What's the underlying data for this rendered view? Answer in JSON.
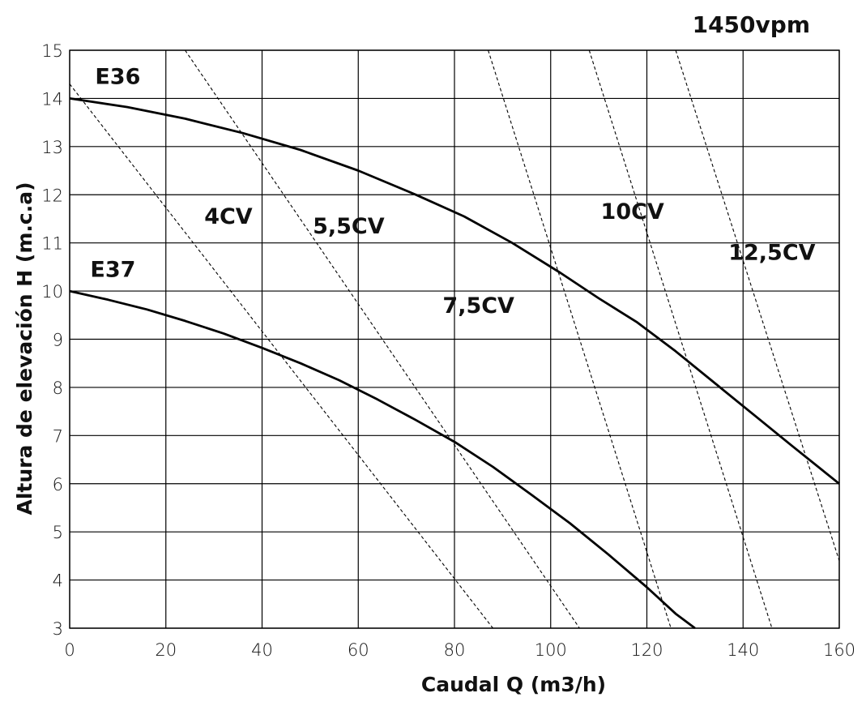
{
  "chart_data": {
    "type": "line",
    "title": "",
    "subtitle": "1450vpm",
    "xlabel": "Caudal Q (m3/h)",
    "ylabel": "Altura de elevación H (m.c.a)",
    "xlim": [
      0,
      160
    ],
    "ylim": [
      3,
      15
    ],
    "x_ticks": [
      "0",
      "20",
      "40",
      "60",
      "80",
      "100",
      "120",
      "140",
      "160"
    ],
    "y_ticks": [
      "3",
      "4",
      "5",
      "6",
      "7",
      "8",
      "9",
      "10",
      "11",
      "12",
      "13",
      "14",
      "15"
    ],
    "grid": true,
    "series": [
      {
        "name": "E36",
        "x": [
          0,
          12,
          24,
          36,
          48,
          60,
          72,
          82,
          92,
          102,
          110,
          118,
          126,
          134,
          142,
          150,
          160
        ],
        "values": [
          14.0,
          13.82,
          13.58,
          13.28,
          12.93,
          12.5,
          12.0,
          11.55,
          11.0,
          10.38,
          9.85,
          9.35,
          8.75,
          8.1,
          7.45,
          6.8,
          6.0
        ]
      },
      {
        "name": "E37",
        "x": [
          0,
          8,
          16,
          24,
          32,
          40,
          48,
          56,
          64,
          72,
          80,
          88,
          96,
          104,
          112,
          120,
          126,
          130
        ],
        "values": [
          10.0,
          9.82,
          9.62,
          9.38,
          9.12,
          8.82,
          8.5,
          8.15,
          7.75,
          7.32,
          6.87,
          6.35,
          5.77,
          5.18,
          4.53,
          3.85,
          3.3,
          3.0
        ]
      }
    ],
    "power_lines": [
      {
        "name": "4CV",
        "x": [
          0,
          88
        ],
        "values": [
          14.3,
          3.0
        ]
      },
      {
        "name": "5,5CV",
        "x": [
          24,
          106
        ],
        "values": [
          15.0,
          3.0
        ]
      },
      {
        "name": "7,5CV",
        "x": [
          87,
          125
        ],
        "values": [
          15.0,
          3.0
        ]
      },
      {
        "name": "10CV",
        "x": [
          108,
          146
        ],
        "values": [
          15.0,
          3.0
        ]
      },
      {
        "name": "12,5CV",
        "x": [
          126,
          160
        ],
        "values": [
          15.0,
          4.4
        ]
      }
    ],
    "annotations": [
      {
        "text": "E36",
        "x": 10,
        "y": 14.3
      },
      {
        "text": "E37",
        "x": 9,
        "y": 10.3
      },
      {
        "text": "4CV",
        "x": 33,
        "y": 11.4
      },
      {
        "text": "5,5CV",
        "x": 58,
        "y": 11.2
      },
      {
        "text": "7,5CV",
        "x": 85,
        "y": 9.55
      },
      {
        "text": "10CV",
        "x": 117,
        "y": 11.5
      },
      {
        "text": "12,5CV",
        "x": 146,
        "y": 10.65
      }
    ]
  }
}
